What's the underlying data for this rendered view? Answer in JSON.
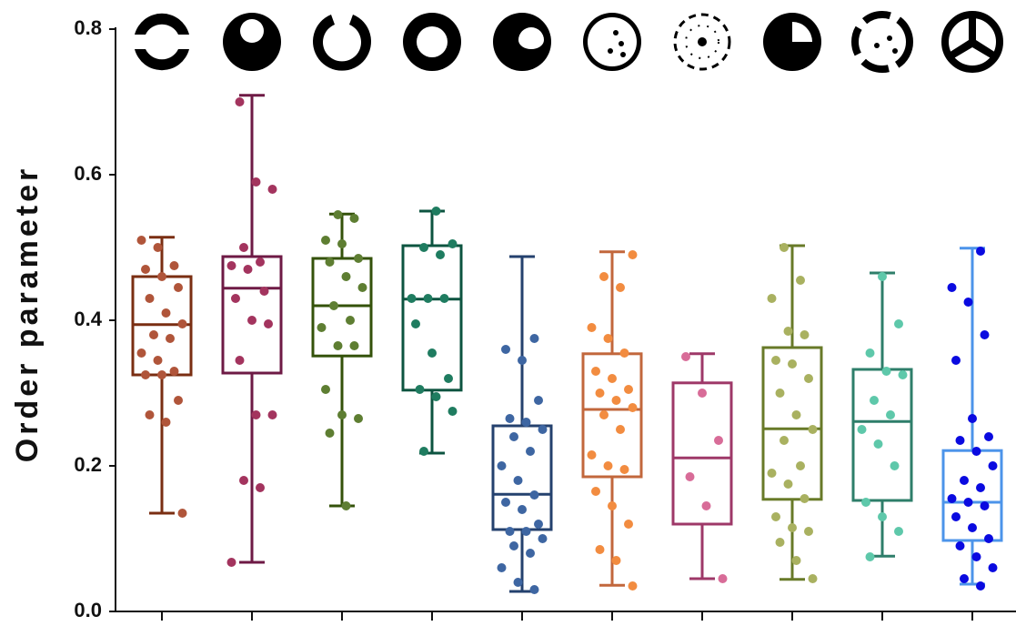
{
  "chart_data": {
    "type": "box",
    "y_label": "Order parameter",
    "ylim": [
      0,
      0.8
    ],
    "yticks": [
      {
        "value": 0,
        "label": "0.0"
      },
      0.2,
      0.4,
      0.6,
      0.8
    ],
    "categories": [
      null,
      null,
      null,
      null,
      null,
      null,
      null,
      null,
      null,
      null
    ],
    "series": [
      {
        "color": "#7a2e12",
        "point_color": "#b0553a",
        "min": 0.135,
        "q1": 0.325,
        "median": 0.394,
        "q3": 0.46,
        "max": 0.514,
        "points": [
          0.51,
          0.5,
          0.475,
          0.47,
          0.46,
          0.445,
          0.43,
          0.41,
          0.395,
          0.38,
          0.375,
          0.355,
          0.345,
          0.33,
          0.325,
          0.325,
          0.29,
          0.27,
          0.26,
          0.135
        ]
      },
      {
        "color": "#6e1a45",
        "point_color": "#a3345e",
        "min": 0.0675,
        "q1": 0.3275,
        "median": 0.444,
        "q3": 0.4875,
        "max": 0.709,
        "points": [
          0.7,
          0.59,
          0.58,
          0.5,
          0.48,
          0.475,
          0.47,
          0.44,
          0.43,
          0.4,
          0.395,
          0.345,
          0.27,
          0.27,
          0.18,
          0.17,
          0.0675
        ]
      },
      {
        "color": "#34520a",
        "point_color": "#5e7e32",
        "min": 0.145,
        "q1": 0.351,
        "median": 0.42,
        "q3": 0.485,
        "max": 0.546,
        "points": [
          0.545,
          0.54,
          0.51,
          0.505,
          0.485,
          0.48,
          0.46,
          0.445,
          0.42,
          0.4,
          0.39,
          0.365,
          0.365,
          0.305,
          0.27,
          0.265,
          0.245,
          0.145
        ]
      },
      {
        "color": "#0d5440",
        "point_color": "#1f7c60",
        "min": 0.2175,
        "q1": 0.304,
        "median": 0.429,
        "q3": 0.5025,
        "max": 0.55,
        "points": [
          0.55,
          0.505,
          0.5,
          0.49,
          0.43,
          0.43,
          0.43,
          0.395,
          0.355,
          0.32,
          0.305,
          0.295,
          0.275,
          0.22
        ]
      },
      {
        "color": "#24416e",
        "point_color": "#3e66a2",
        "min": 0.0275,
        "q1": 0.1125,
        "median": 0.161,
        "q3": 0.255,
        "max": 0.4875,
        "points": [
          0.375,
          0.36,
          0.345,
          0.29,
          0.265,
          0.26,
          0.25,
          0.24,
          0.22,
          0.2,
          0.18,
          0.16,
          0.15,
          0.14,
          0.12,
          0.11,
          0.11,
          0.1,
          0.09,
          0.08,
          0.06,
          0.04,
          0.03
        ]
      },
      {
        "color": "#c2673c",
        "point_color": "#f28c40",
        "min": 0.036,
        "q1": 0.185,
        "median": 0.2775,
        "q3": 0.354,
        "max": 0.494,
        "points": [
          0.49,
          0.46,
          0.445,
          0.39,
          0.375,
          0.355,
          0.33,
          0.32,
          0.305,
          0.3,
          0.29,
          0.28,
          0.27,
          0.25,
          0.215,
          0.2,
          0.195,
          0.165,
          0.145,
          0.12,
          0.085,
          0.07,
          0.035
        ]
      },
      {
        "color": "#9e3868",
        "point_color": "#d86c98",
        "min": 0.045,
        "q1": 0.12,
        "median": 0.211,
        "q3": 0.314,
        "max": 0.354,
        "points": [
          0.35,
          0.3,
          0.235,
          0.185,
          0.145,
          0.045
        ]
      },
      {
        "color": "#687a28",
        "point_color": "#a9b160",
        "min": 0.044,
        "q1": 0.154,
        "median": 0.251,
        "q3": 0.3625,
        "max": 0.5025,
        "points": [
          0.5,
          0.455,
          0.43,
          0.385,
          0.38,
          0.345,
          0.34,
          0.32,
          0.3,
          0.27,
          0.25,
          0.235,
          0.2,
          0.19,
          0.175,
          0.155,
          0.13,
          0.115,
          0.11,
          0.095,
          0.07,
          0.045
        ]
      },
      {
        "color": "#2e7e6a",
        "point_color": "#5ec8aa",
        "min": 0.076,
        "q1": 0.1525,
        "median": 0.261,
        "q3": 0.3325,
        "max": 0.465,
        "points": [
          0.46,
          0.395,
          0.355,
          0.33,
          0.325,
          0.29,
          0.27,
          0.25,
          0.23,
          0.2,
          0.15,
          0.13,
          0.11,
          0.075
        ]
      },
      {
        "color": "#4c94ea",
        "point_color": "#0a0ae0",
        "min": 0.0375,
        "q1": 0.0975,
        "median": 0.15,
        "q3": 0.221,
        "max": 0.499,
        "points": [
          0.495,
          0.445,
          0.425,
          0.38,
          0.345,
          0.265,
          0.24,
          0.235,
          0.22,
          0.2,
          0.18,
          0.17,
          0.155,
          0.15,
          0.145,
          0.13,
          0.115,
          0.1,
          0.09,
          0.075,
          0.06,
          0.045,
          0.035
        ]
      }
    ]
  }
}
